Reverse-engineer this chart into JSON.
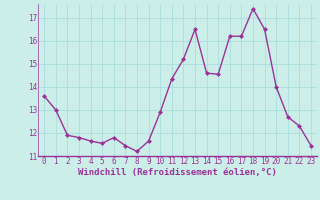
{
  "x": [
    0,
    1,
    2,
    3,
    4,
    5,
    6,
    7,
    8,
    9,
    10,
    11,
    12,
    13,
    14,
    15,
    16,
    17,
    18,
    19,
    20,
    21,
    22,
    23
  ],
  "y": [
    13.6,
    13.0,
    11.9,
    11.8,
    11.65,
    11.55,
    11.8,
    11.45,
    11.2,
    11.65,
    12.9,
    14.35,
    15.2,
    16.5,
    14.6,
    14.55,
    16.2,
    16.2,
    17.4,
    16.5,
    14.0,
    12.7,
    12.3,
    11.45
  ],
  "line_color": "#993399",
  "marker": "D",
  "marker_size": 2.0,
  "bg_color": "#cceee8",
  "grid_color": "#aadddd",
  "xlabel": "Windchill (Refroidissement éolien,°C)",
  "xlim": [
    -0.5,
    23.5
  ],
  "ylim": [
    11.0,
    17.6
  ],
  "yticks": [
    11,
    12,
    13,
    14,
    15,
    16,
    17
  ],
  "xticks": [
    0,
    1,
    2,
    3,
    4,
    5,
    6,
    7,
    8,
    9,
    10,
    11,
    12,
    13,
    14,
    15,
    16,
    17,
    18,
    19,
    20,
    21,
    22,
    23
  ],
  "tick_label_fontsize": 5.5,
  "xlabel_fontsize": 6.5,
  "linewidth": 1.0
}
